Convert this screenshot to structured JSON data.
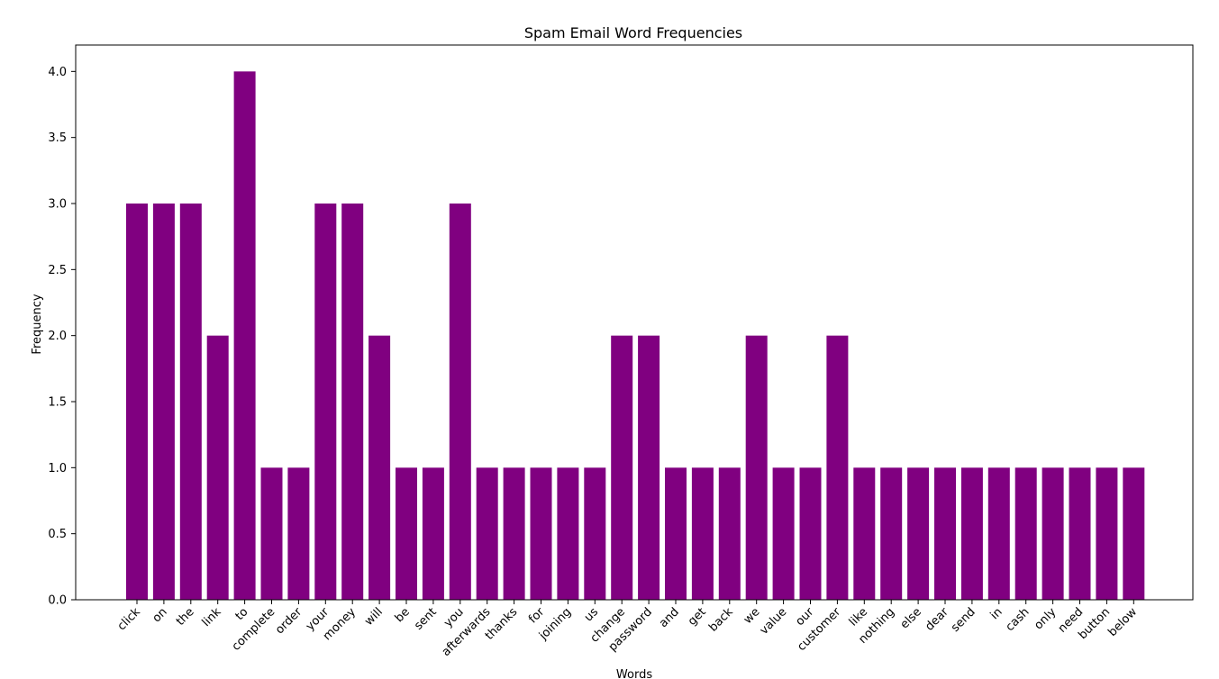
{
  "chart_data": {
    "type": "bar",
    "title": "Spam Email Word Frequencies",
    "xlabel": "Words",
    "ylabel": "Frequency",
    "ylim": [
      0,
      4.2
    ],
    "yticks": [
      "0.0",
      "0.5",
      "1.0",
      "1.5",
      "2.0",
      "2.5",
      "3.0",
      "3.5",
      "4.0"
    ],
    "grid": false,
    "bar_color": "#800080",
    "categories": [
      "click",
      "on",
      "the",
      "link",
      "to",
      "complete",
      "order",
      "your",
      "money",
      "will",
      "be",
      "sent",
      "you",
      "afterwards",
      "thanks",
      "for",
      "joining",
      "us",
      "change",
      "password",
      "and",
      "get",
      "back",
      "we",
      "value",
      "our",
      "customer",
      "like",
      "nothing",
      "else",
      "dear",
      "send",
      "in",
      "cash",
      "only",
      "need",
      "button",
      "below"
    ],
    "values": [
      3,
      3,
      3,
      2,
      4,
      1,
      1,
      3,
      3,
      2,
      1,
      1,
      3,
      1,
      1,
      1,
      1,
      1,
      2,
      2,
      1,
      1,
      1,
      2,
      1,
      1,
      2,
      1,
      1,
      1,
      1,
      1,
      1,
      1,
      1,
      1,
      1,
      1
    ]
  }
}
